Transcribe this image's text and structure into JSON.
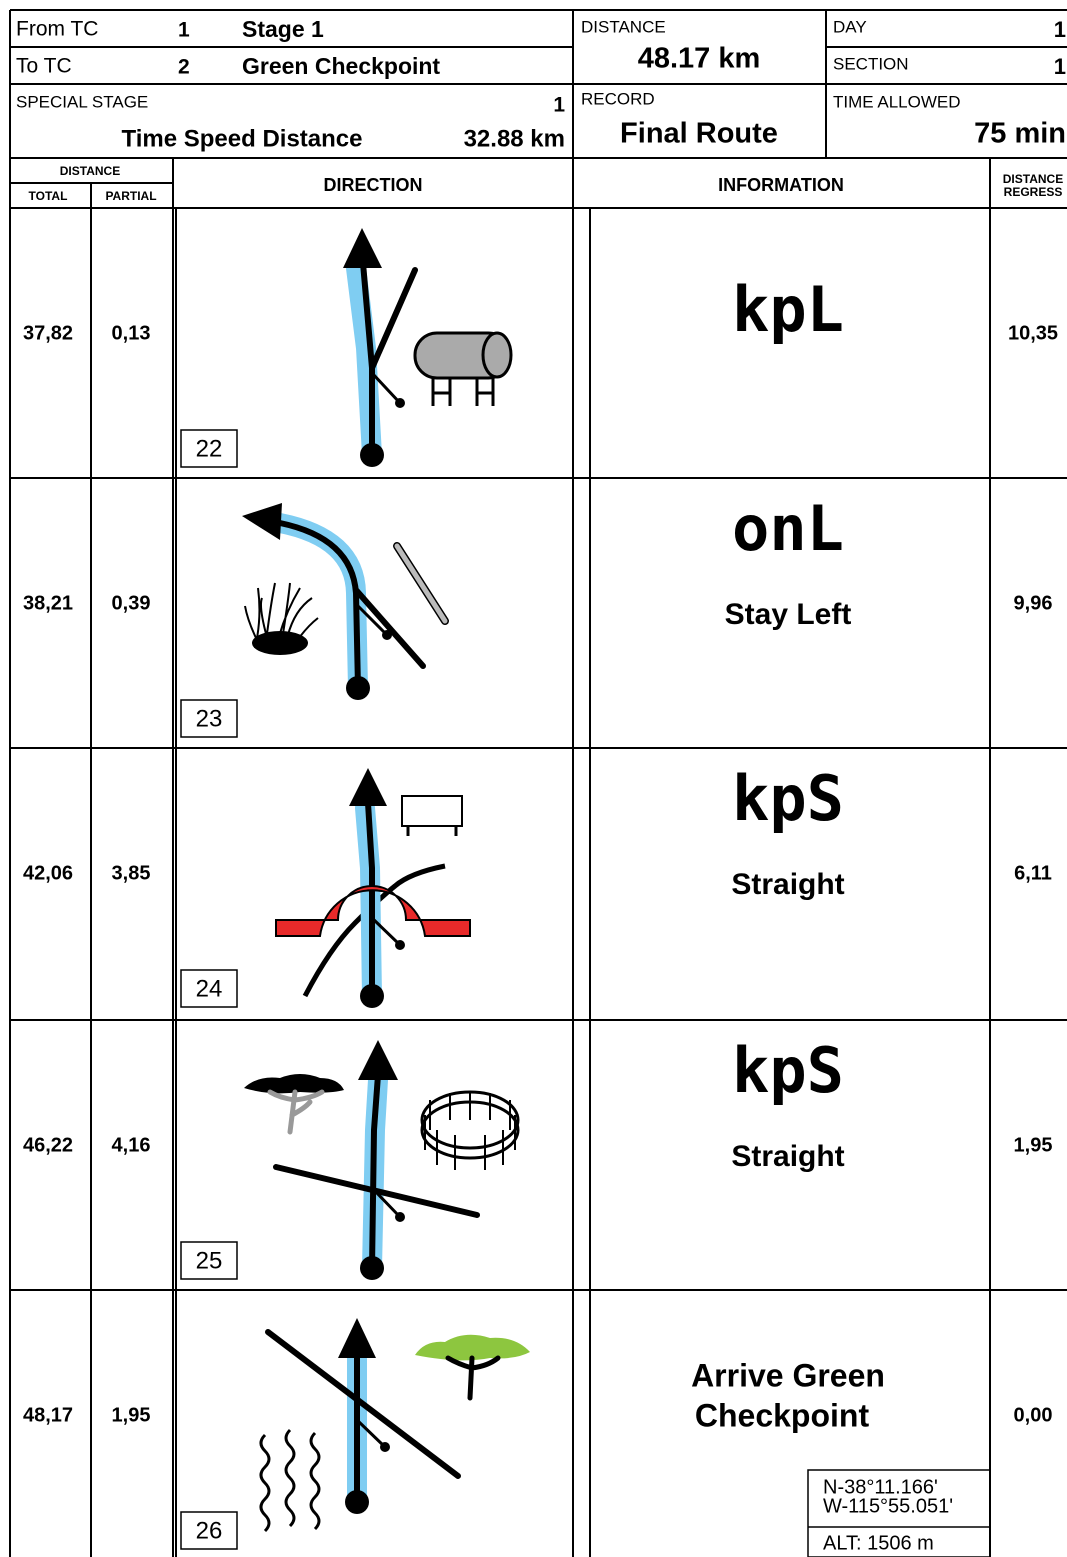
{
  "header": {
    "from_tc": {
      "label": "From TC",
      "number": "1",
      "name": "Stage 1"
    },
    "to_tc": {
      "label": "To TC",
      "number": "2",
      "name": "Green Checkpoint"
    },
    "special_stage": {
      "label": "SPECIAL STAGE",
      "number": "1",
      "name": "Time Speed Distance",
      "distance": "32.88 km"
    },
    "distance": {
      "label": "DISTANCE",
      "value": "48.17 km"
    },
    "record": {
      "label": "RECORD",
      "value": "Final Route"
    },
    "day": {
      "label": "DAY",
      "value": "1"
    },
    "section": {
      "label": "SECTION",
      "value": "1"
    },
    "time_allowed": {
      "label": "TIME ALLOWED",
      "value": "75 min"
    }
  },
  "columns": {
    "distance": "DISTANCE",
    "total": "TOTAL",
    "partial": "PARTIAL",
    "direction": "DIRECTION",
    "information": "INFORMATION",
    "regress": [
      "DISTANCE",
      "REGRESS"
    ]
  },
  "rows": [
    {
      "total": "37,82",
      "partial": "0,13",
      "box": "22",
      "code": "kpL",
      "regress": "10,35"
    },
    {
      "total": "38,21",
      "partial": "0,39",
      "box": "23",
      "code": "onL",
      "text": [
        "Stay Left"
      ],
      "regress": "9,96"
    },
    {
      "total": "42,06",
      "partial": "3,85",
      "box": "24",
      "code": "kpS",
      "text": [
        "Straight"
      ],
      "regress": "6,11"
    },
    {
      "total": "46,22",
      "partial": "4,16",
      "box": "25",
      "code": "kpS",
      "text": [
        "Straight"
      ],
      "regress": "1,95"
    },
    {
      "total": "48,17",
      "partial": "1,95",
      "box": "26",
      "text": [
        "Arrive Green",
        "Checkpoint"
      ],
      "regress": "0,00",
      "coordinates": [
        "N-38°11.166'",
        "W-115°55.051'",
        "ALT: 1506 m"
      ]
    }
  ]
}
